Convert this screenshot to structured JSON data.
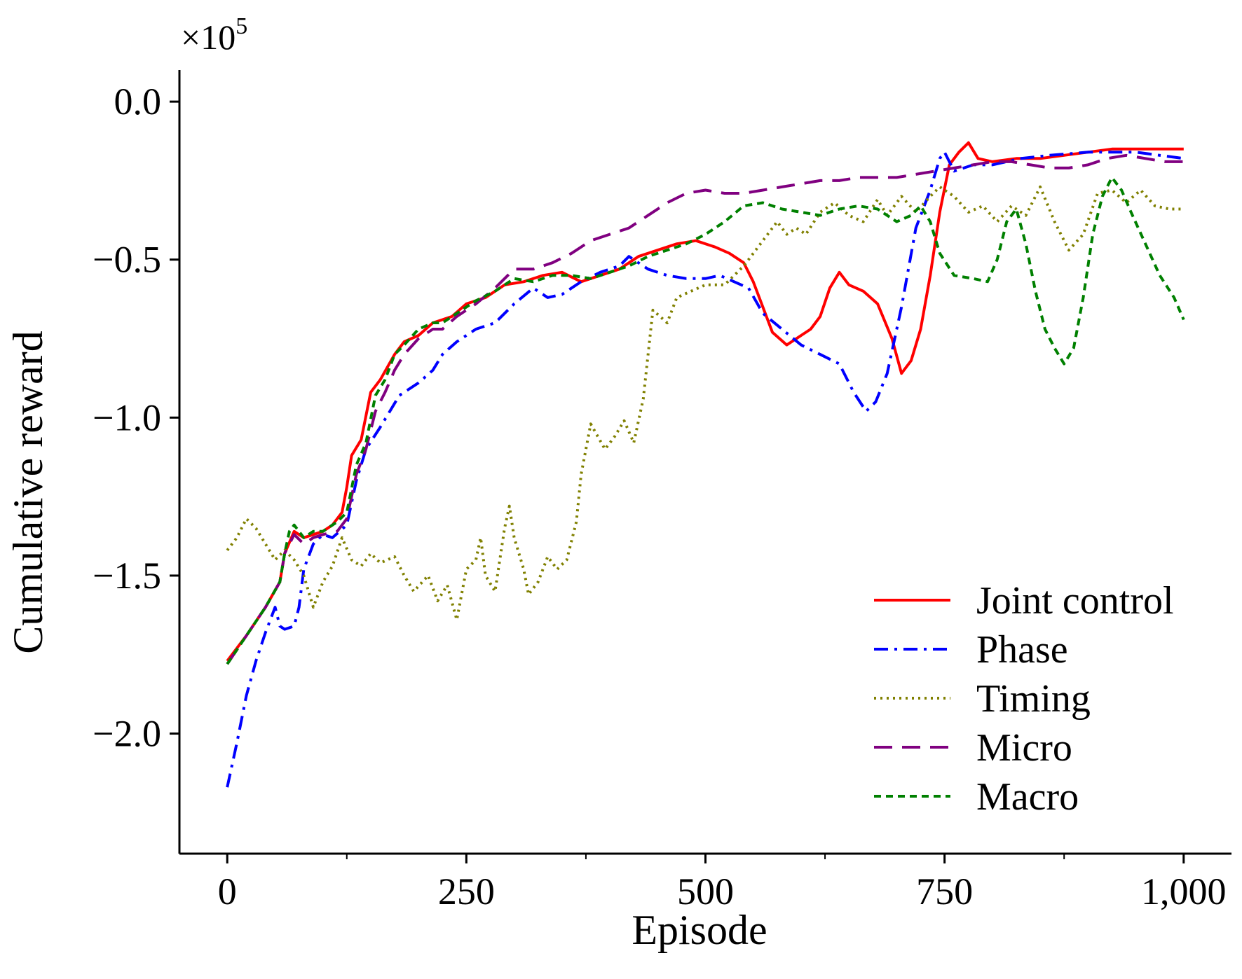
{
  "chart_data": {
    "type": "line",
    "title": "",
    "xlabel": "Episode",
    "ylabel": "Cumulative reward",
    "y_multiplier_base": "×10",
    "y_multiplier_exp": "5",
    "xlim": [
      -50,
      1050
    ],
    "ylim": [
      -2.38,
      0.1
    ],
    "x_ticks": [
      0,
      250,
      500,
      750,
      1000
    ],
    "x_tick_labels": [
      "0",
      "250",
      "500",
      "750",
      "1,000"
    ],
    "y_ticks": [
      0.0,
      -0.5,
      -1.0,
      -1.5,
      -2.0
    ],
    "y_tick_labels": [
      "0.0",
      "−0.5",
      "−1.0",
      "−1.5",
      "−2.0"
    ],
    "grid": false,
    "legend_position": "lower-right",
    "series": [
      {
        "name": "Joint control",
        "color": "#ff0000",
        "dash": "solid",
        "x": [
          0,
          20,
          40,
          55,
          60,
          70,
          80,
          90,
          100,
          110,
          120,
          125,
          130,
          140,
          150,
          160,
          175,
          185,
          200,
          215,
          225,
          235,
          250,
          270,
          290,
          310,
          330,
          350,
          370,
          390,
          410,
          430,
          450,
          470,
          490,
          510,
          525,
          540,
          550,
          560,
          570,
          585,
          600,
          610,
          620,
          630,
          640,
          650,
          665,
          680,
          695,
          705,
          715,
          725,
          735,
          745,
          755,
          765,
          775,
          785,
          800,
          825,
          850,
          875,
          900,
          925,
          950,
          975,
          1000
        ],
        "y": [
          -1.77,
          -1.69,
          -1.6,
          -1.52,
          -1.43,
          -1.36,
          -1.38,
          -1.37,
          -1.36,
          -1.34,
          -1.3,
          -1.22,
          -1.12,
          -1.07,
          -0.92,
          -0.88,
          -0.8,
          -0.76,
          -0.74,
          -0.7,
          -0.69,
          -0.68,
          -0.64,
          -0.62,
          -0.58,
          -0.57,
          -0.55,
          -0.54,
          -0.57,
          -0.55,
          -0.53,
          -0.49,
          -0.47,
          -0.45,
          -0.44,
          -0.46,
          -0.48,
          -0.51,
          -0.57,
          -0.65,
          -0.73,
          -0.77,
          -0.74,
          -0.72,
          -0.68,
          -0.59,
          -0.54,
          -0.58,
          -0.6,
          -0.64,
          -0.75,
          -0.86,
          -0.82,
          -0.72,
          -0.55,
          -0.35,
          -0.2,
          -0.16,
          -0.13,
          -0.18,
          -0.19,
          -0.18,
          -0.18,
          -0.17,
          -0.16,
          -0.15,
          -0.15,
          -0.15,
          -0.15
        ]
      },
      {
        "name": "Phase",
        "color": "#0000ff",
        "dash": "dashdot",
        "x": [
          0,
          10,
          20,
          30,
          40,
          50,
          55,
          60,
          70,
          75,
          80,
          90,
          100,
          110,
          125,
          135,
          145,
          160,
          180,
          200,
          215,
          225,
          240,
          260,
          280,
          300,
          320,
          335,
          350,
          370,
          390,
          410,
          420,
          440,
          460,
          480,
          500,
          515,
          530,
          545,
          560,
          580,
          600,
          620,
          640,
          655,
          668,
          678,
          690,
          705,
          720,
          735,
          745,
          750,
          760,
          780,
          800,
          830,
          860,
          900,
          950,
          1000
        ],
        "y": [
          -2.17,
          -2.03,
          -1.88,
          -1.77,
          -1.68,
          -1.6,
          -1.66,
          -1.67,
          -1.66,
          -1.6,
          -1.48,
          -1.4,
          -1.37,
          -1.38,
          -1.34,
          -1.2,
          -1.1,
          -1.03,
          -0.93,
          -0.89,
          -0.85,
          -0.8,
          -0.76,
          -0.72,
          -0.7,
          -0.64,
          -0.59,
          -0.62,
          -0.61,
          -0.57,
          -0.54,
          -0.52,
          -0.49,
          -0.53,
          -0.55,
          -0.56,
          -0.56,
          -0.55,
          -0.57,
          -0.59,
          -0.67,
          -0.72,
          -0.77,
          -0.8,
          -0.83,
          -0.92,
          -0.98,
          -0.95,
          -0.86,
          -0.65,
          -0.4,
          -0.28,
          -0.18,
          -0.16,
          -0.22,
          -0.2,
          -0.2,
          -0.18,
          -0.17,
          -0.16,
          -0.16,
          -0.18
        ]
      },
      {
        "name": "Timing",
        "color": "#808000",
        "dash": "dotted",
        "x": [
          0,
          10,
          20,
          30,
          40,
          50,
          60,
          70,
          80,
          90,
          100,
          110,
          120,
          130,
          140,
          150,
          160,
          175,
          185,
          195,
          210,
          220,
          230,
          240,
          250,
          260,
          265,
          270,
          280,
          290,
          295,
          300,
          310,
          315,
          325,
          335,
          345,
          355,
          365,
          370,
          380,
          395,
          405,
          415,
          425,
          435,
          445,
          460,
          470,
          485,
          500,
          520,
          540,
          560,
          575,
          585,
          595,
          605,
          620,
          635,
          650,
          665,
          680,
          690,
          705,
          720,
          735,
          745,
          760,
          775,
          790,
          805,
          820,
          835,
          850,
          865,
          880,
          895,
          910,
          925,
          940,
          955,
          970,
          985,
          1000
        ],
        "y": [
          -1.42,
          -1.38,
          -1.32,
          -1.35,
          -1.4,
          -1.45,
          -1.42,
          -1.45,
          -1.5,
          -1.6,
          -1.52,
          -1.47,
          -1.38,
          -1.45,
          -1.47,
          -1.43,
          -1.46,
          -1.44,
          -1.5,
          -1.55,
          -1.5,
          -1.58,
          -1.53,
          -1.64,
          -1.48,
          -1.45,
          -1.38,
          -1.5,
          -1.55,
          -1.35,
          -1.28,
          -1.38,
          -1.48,
          -1.56,
          -1.52,
          -1.44,
          -1.48,
          -1.45,
          -1.33,
          -1.18,
          -1.02,
          -1.1,
          -1.06,
          -1.01,
          -1.08,
          -0.94,
          -0.66,
          -0.7,
          -0.62,
          -0.6,
          -0.58,
          -0.58,
          -0.52,
          -0.44,
          -0.38,
          -0.42,
          -0.4,
          -0.42,
          -0.35,
          -0.32,
          -0.36,
          -0.38,
          -0.31,
          -0.36,
          -0.3,
          -0.35,
          -0.3,
          -0.27,
          -0.3,
          -0.35,
          -0.33,
          -0.38,
          -0.33,
          -0.36,
          -0.27,
          -0.38,
          -0.47,
          -0.42,
          -0.29,
          -0.28,
          -0.32,
          -0.28,
          -0.33,
          -0.34,
          -0.34
        ]
      },
      {
        "name": "Micro",
        "color": "#800080",
        "dash": "dashed",
        "x": [
          0,
          20,
          40,
          55,
          60,
          70,
          80,
          90,
          100,
          115,
          125,
          135,
          145,
          155,
          165,
          175,
          185,
          200,
          215,
          225,
          240,
          260,
          280,
          300,
          320,
          340,
          360,
          380,
          400,
          420,
          440,
          460,
          480,
          500,
          520,
          540,
          560,
          580,
          600,
          620,
          640,
          660,
          680,
          700,
          720,
          740,
          760,
          780,
          800,
          820,
          840,
          860,
          880,
          900,
          920,
          940,
          960,
          980,
          1000
        ],
        "y": [
          -1.78,
          -1.69,
          -1.6,
          -1.52,
          -1.43,
          -1.37,
          -1.4,
          -1.38,
          -1.37,
          -1.36,
          -1.32,
          -1.18,
          -1.1,
          -0.98,
          -0.92,
          -0.85,
          -0.8,
          -0.75,
          -0.72,
          -0.72,
          -0.68,
          -0.64,
          -0.59,
          -0.53,
          -0.53,
          -0.51,
          -0.48,
          -0.44,
          -0.42,
          -0.4,
          -0.36,
          -0.32,
          -0.29,
          -0.28,
          -0.29,
          -0.29,
          -0.28,
          -0.27,
          -0.26,
          -0.25,
          -0.25,
          -0.24,
          -0.24,
          -0.24,
          -0.23,
          -0.22,
          -0.21,
          -0.2,
          -0.19,
          -0.19,
          -0.2,
          -0.21,
          -0.21,
          -0.2,
          -0.18,
          -0.17,
          -0.18,
          -0.19,
          -0.19
        ]
      },
      {
        "name": "Macro",
        "color": "#008000",
        "dash": "shortdash",
        "x": [
          0,
          20,
          40,
          55,
          60,
          65,
          70,
          80,
          90,
          100,
          115,
          125,
          135,
          145,
          155,
          165,
          175,
          185,
          200,
          215,
          225,
          240,
          260,
          280,
          300,
          320,
          340,
          360,
          380,
          400,
          420,
          440,
          460,
          480,
          500,
          520,
          540,
          560,
          580,
          600,
          620,
          640,
          660,
          680,
          700,
          715,
          725,
          735,
          745,
          760,
          780,
          795,
          805,
          815,
          825,
          835,
          845,
          855,
          865,
          875,
          885,
          895,
          905,
          915,
          925,
          935,
          945,
          960,
          975,
          990,
          1000
        ],
        "y": [
          -1.78,
          -1.69,
          -1.6,
          -1.52,
          -1.43,
          -1.36,
          -1.34,
          -1.38,
          -1.36,
          -1.36,
          -1.33,
          -1.3,
          -1.15,
          -1.08,
          -0.93,
          -0.88,
          -0.8,
          -0.77,
          -0.72,
          -0.7,
          -0.7,
          -0.67,
          -0.63,
          -0.6,
          -0.56,
          -0.57,
          -0.55,
          -0.55,
          -0.56,
          -0.54,
          -0.52,
          -0.49,
          -0.47,
          -0.45,
          -0.42,
          -0.38,
          -0.33,
          -0.32,
          -0.34,
          -0.35,
          -0.36,
          -0.34,
          -0.33,
          -0.34,
          -0.38,
          -0.36,
          -0.33,
          -0.38,
          -0.48,
          -0.55,
          -0.56,
          -0.57,
          -0.5,
          -0.38,
          -0.34,
          -0.45,
          -0.6,
          -0.72,
          -0.78,
          -0.83,
          -0.78,
          -0.62,
          -0.42,
          -0.3,
          -0.24,
          -0.28,
          -0.35,
          -0.45,
          -0.55,
          -0.62,
          -0.69
        ]
      }
    ]
  }
}
